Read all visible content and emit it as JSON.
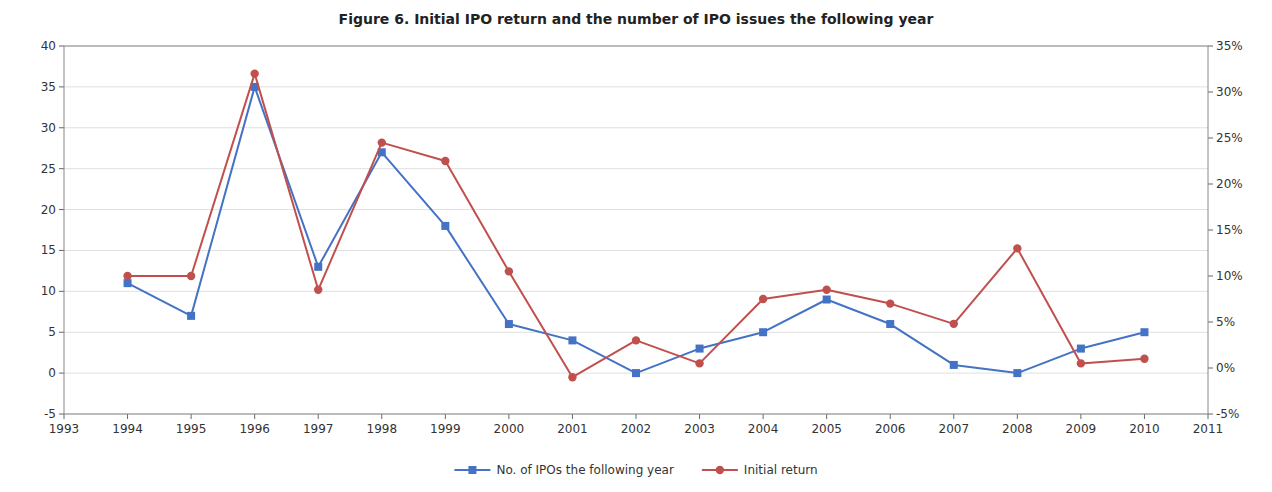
{
  "chart_data": {
    "type": "line",
    "title": "Figure 6. Initial IPO return and the number of IPO issues the following year",
    "x": [
      1994,
      1995,
      1996,
      1997,
      1998,
      1999,
      2000,
      2001,
      2002,
      2003,
      2004,
      2005,
      2006,
      2007,
      2008,
      2009,
      2010
    ],
    "series": [
      {
        "name": "No. of IPOs the following year",
        "color": "#4472C4",
        "marker": "square",
        "values": [
          11,
          7,
          35,
          13,
          27,
          18,
          6,
          4,
          0,
          3,
          5,
          9,
          6,
          1,
          0,
          3,
          5
        ]
      },
      {
        "name": "Initial return",
        "color": "#C0504D",
        "marker": "circle",
        "axis": "y2",
        "values": [
          0.1,
          0.1,
          0.32,
          0.085,
          0.245,
          0.225,
          0.105,
          -0.01,
          0.03,
          0.005,
          0.075,
          0.085,
          0.07,
          0.048,
          0.13,
          0.005,
          0.01
        ]
      }
    ],
    "xlim": [
      1993,
      2011
    ],
    "xticks": [
      1993,
      1994,
      1995,
      1996,
      1997,
      1998,
      1999,
      2000,
      2001,
      2002,
      2003,
      2004,
      2005,
      2006,
      2007,
      2008,
      2009,
      2010,
      2011
    ],
    "ylim": [
      -5,
      40
    ],
    "yticks": [
      -5,
      0,
      5,
      10,
      15,
      20,
      25,
      30,
      35,
      40
    ],
    "y2lim": [
      -0.05,
      0.35
    ],
    "y2ticks": [
      {
        "value": -0.05,
        "label": "-5%"
      },
      {
        "value": 0.0,
        "label": "0%"
      },
      {
        "value": 0.05,
        "label": "5%"
      },
      {
        "value": 0.1,
        "label": "10%"
      },
      {
        "value": 0.15,
        "label": "15%"
      },
      {
        "value": 0.2,
        "label": "20%"
      },
      {
        "value": 0.25,
        "label": "25%"
      },
      {
        "value": 0.3,
        "label": "30%"
      },
      {
        "value": 0.35,
        "label": "35%"
      }
    ],
    "grid": true,
    "legend": "bottom"
  }
}
